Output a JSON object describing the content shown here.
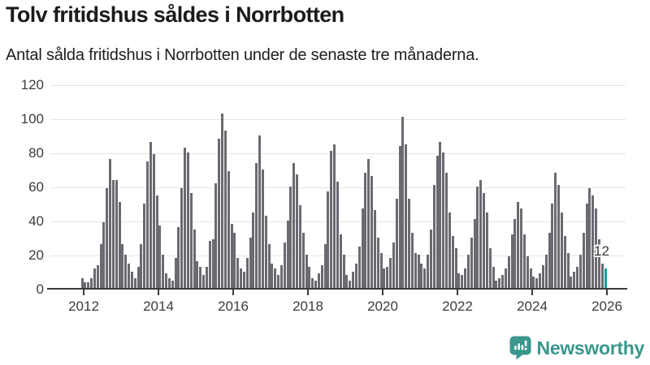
{
  "header": {
    "title": "Tolv fritidshus såldes i Norrbotten",
    "subtitle": "Antal sålda fritidshus i Norrbotten under de senaste tre månaderna."
  },
  "chart_data": {
    "type": "bar",
    "title": "Tolv fritidshus såldes i Norrbotten",
    "xlabel": "",
    "ylabel": "",
    "ylim": [
      0,
      120
    ],
    "y_ticks": [
      0,
      20,
      40,
      60,
      80,
      100,
      120
    ],
    "x_tick_labels": [
      "2012",
      "2014",
      "2016",
      "2018",
      "2020",
      "2022",
      "2024",
      "2026"
    ],
    "grid": true,
    "legend_position": "none",
    "bar_color": "#6a6a71",
    "series": [
      {
        "name": "Antal sålda fritidshus i Norrbotten, rullande tre månader",
        "start": "2011-12",
        "frequency": "monthly",
        "values": [
          6,
          4,
          4,
          6,
          12,
          14,
          26,
          39,
          59,
          76,
          64,
          64,
          51,
          26,
          20,
          15,
          10,
          6,
          13,
          26,
          50,
          75,
          86,
          79,
          55,
          37,
          20,
          9,
          6,
          5,
          18,
          36,
          59,
          83,
          80,
          56,
          35,
          16,
          13,
          8,
          13,
          28,
          29,
          62,
          88,
          103,
          93,
          69,
          38,
          33,
          18,
          12,
          10,
          18,
          30,
          45,
          74,
          90,
          70,
          43,
          26,
          15,
          12,
          8,
          14,
          27,
          40,
          60,
          74,
          67,
          49,
          33,
          20,
          13,
          6,
          5,
          9,
          14,
          26,
          57,
          81,
          85,
          63,
          32,
          20,
          8,
          5,
          10,
          15,
          25,
          47,
          68,
          76,
          66,
          46,
          30,
          21,
          12,
          13,
          18,
          27,
          53,
          84,
          101,
          85,
          53,
          33,
          21,
          20,
          15,
          12,
          20,
          35,
          61,
          78,
          86,
          80,
          68,
          45,
          31,
          24,
          9,
          8,
          12,
          20,
          30,
          41,
          60,
          64,
          56,
          45,
          24,
          13,
          5,
          6,
          8,
          12,
          19,
          32,
          41,
          51,
          47,
          32,
          19,
          12,
          7,
          6,
          9,
          14,
          20,
          33,
          50,
          68,
          61,
          45,
          31,
          21,
          7,
          10,
          13,
          20,
          33,
          50,
          59,
          55,
          47,
          29,
          15,
          12
        ]
      }
    ],
    "highlight": {
      "index": 168,
      "value": 12,
      "label": "12",
      "color": "#00a29a"
    }
  },
  "footer": {
    "brand": "Newsworthy",
    "brand_color": "#3a978d",
    "logo_icon": "newsworthy-speech-bubble-chart-icon"
  }
}
